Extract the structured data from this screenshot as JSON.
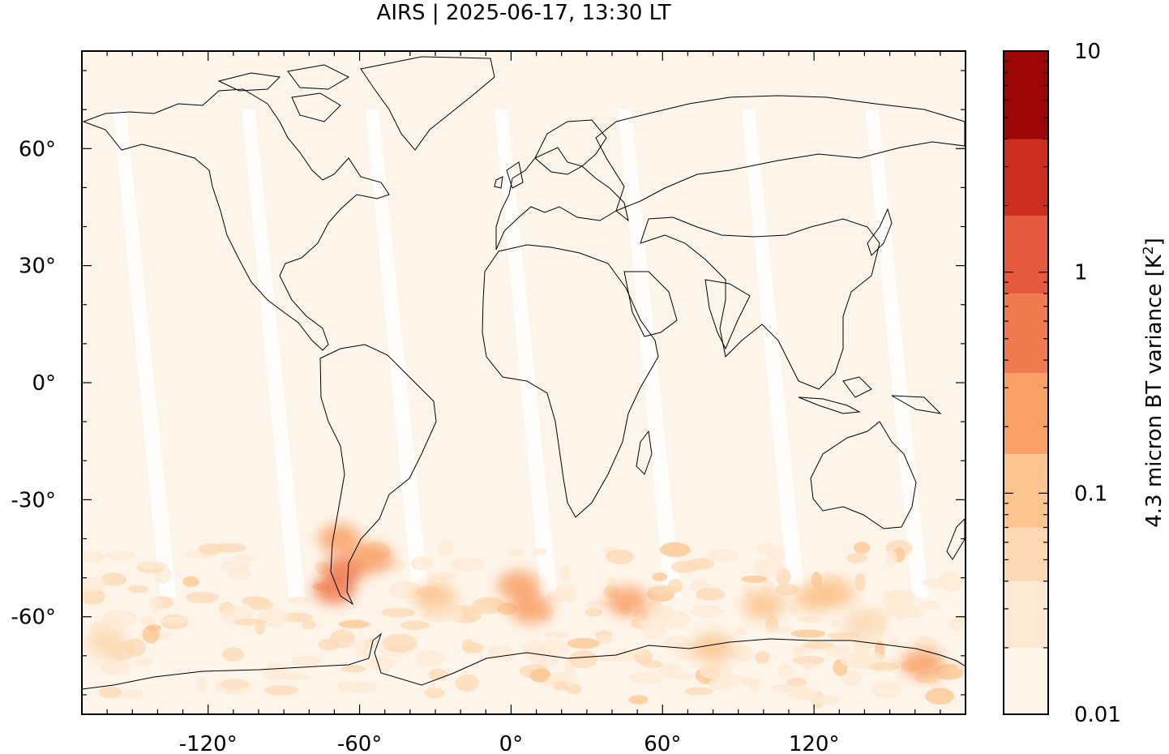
{
  "title": "AIRS | 2025-06-17, 13:30 LT",
  "map": {
    "projection": "plate-carree",
    "lon_range": [
      -170,
      180
    ],
    "lat_range": [
      -85,
      85
    ],
    "lon_ticks": [
      {
        "value": -120,
        "label": "-120°"
      },
      {
        "value": -60,
        "label": "-60°"
      },
      {
        "value": 0,
        "label": "0°"
      },
      {
        "value": 60,
        "label": "60°"
      },
      {
        "value": 120,
        "label": "120°"
      }
    ],
    "lat_ticks": [
      {
        "value": 60,
        "label": "60°"
      },
      {
        "value": 30,
        "label": "30°"
      },
      {
        "value": 0,
        "label": "0°"
      },
      {
        "value": -30,
        "label": "-30°"
      },
      {
        "value": -60,
        "label": "-60°"
      }
    ],
    "background_color": "#fef5ea",
    "gap_color": "#ffffff",
    "coastline_color": "#000000",
    "swath_gap_centers_at_equator_lon": [
      -148,
      -97,
      -48,
      3,
      52,
      101,
      150
    ],
    "hotspots": [
      {
        "lon": -66,
        "lat": -48,
        "level": 5
      },
      {
        "lon": -70,
        "lat": -53,
        "level": 5
      },
      {
        "lon": -55,
        "lat": -45,
        "level": 4
      },
      {
        "lon": -68,
        "lat": -40,
        "level": 4
      },
      {
        "lon": 3,
        "lat": -52,
        "level": 4
      },
      {
        "lon": 8,
        "lat": -58,
        "level": 4
      },
      {
        "lon": 46,
        "lat": -56,
        "level": 4
      },
      {
        "lon": 120,
        "lat": -55,
        "level": 3
      },
      {
        "lon": 128,
        "lat": -54,
        "level": 3
      },
      {
        "lon": 100,
        "lat": -57,
        "level": 3
      },
      {
        "lon": 163,
        "lat": -72,
        "level": 4
      },
      {
        "lon": -30,
        "lat": -55,
        "level": 3
      },
      {
        "lon": 80,
        "lat": -68,
        "level": 3
      },
      {
        "lon": -160,
        "lat": -67,
        "level": 2
      },
      {
        "lon": 140,
        "lat": -62,
        "level": 2
      }
    ]
  },
  "colorbar": {
    "label_main": "4.3 micron BT variance [K",
    "label_sup": "2",
    "label_end": "]",
    "scale": "log",
    "range": [
      0.01,
      10
    ],
    "tick_labels": [
      {
        "value": 10,
        "label": "10"
      },
      {
        "value": 1,
        "label": "1"
      },
      {
        "value": 0.1,
        "label": "0.1"
      },
      {
        "value": 0.01,
        "label": "0.01"
      }
    ],
    "levels": [
      0.01,
      0.02,
      0.04,
      0.07,
      0.15,
      0.35,
      0.8,
      1.8,
      4.0,
      10
    ],
    "colors": [
      "#fef5ea",
      "#fde9d4",
      "#fcd9b4",
      "#fbc58f",
      "#f9a066",
      "#f07b50",
      "#e55a3d",
      "#cd2e20",
      "#9d0606"
    ]
  }
}
